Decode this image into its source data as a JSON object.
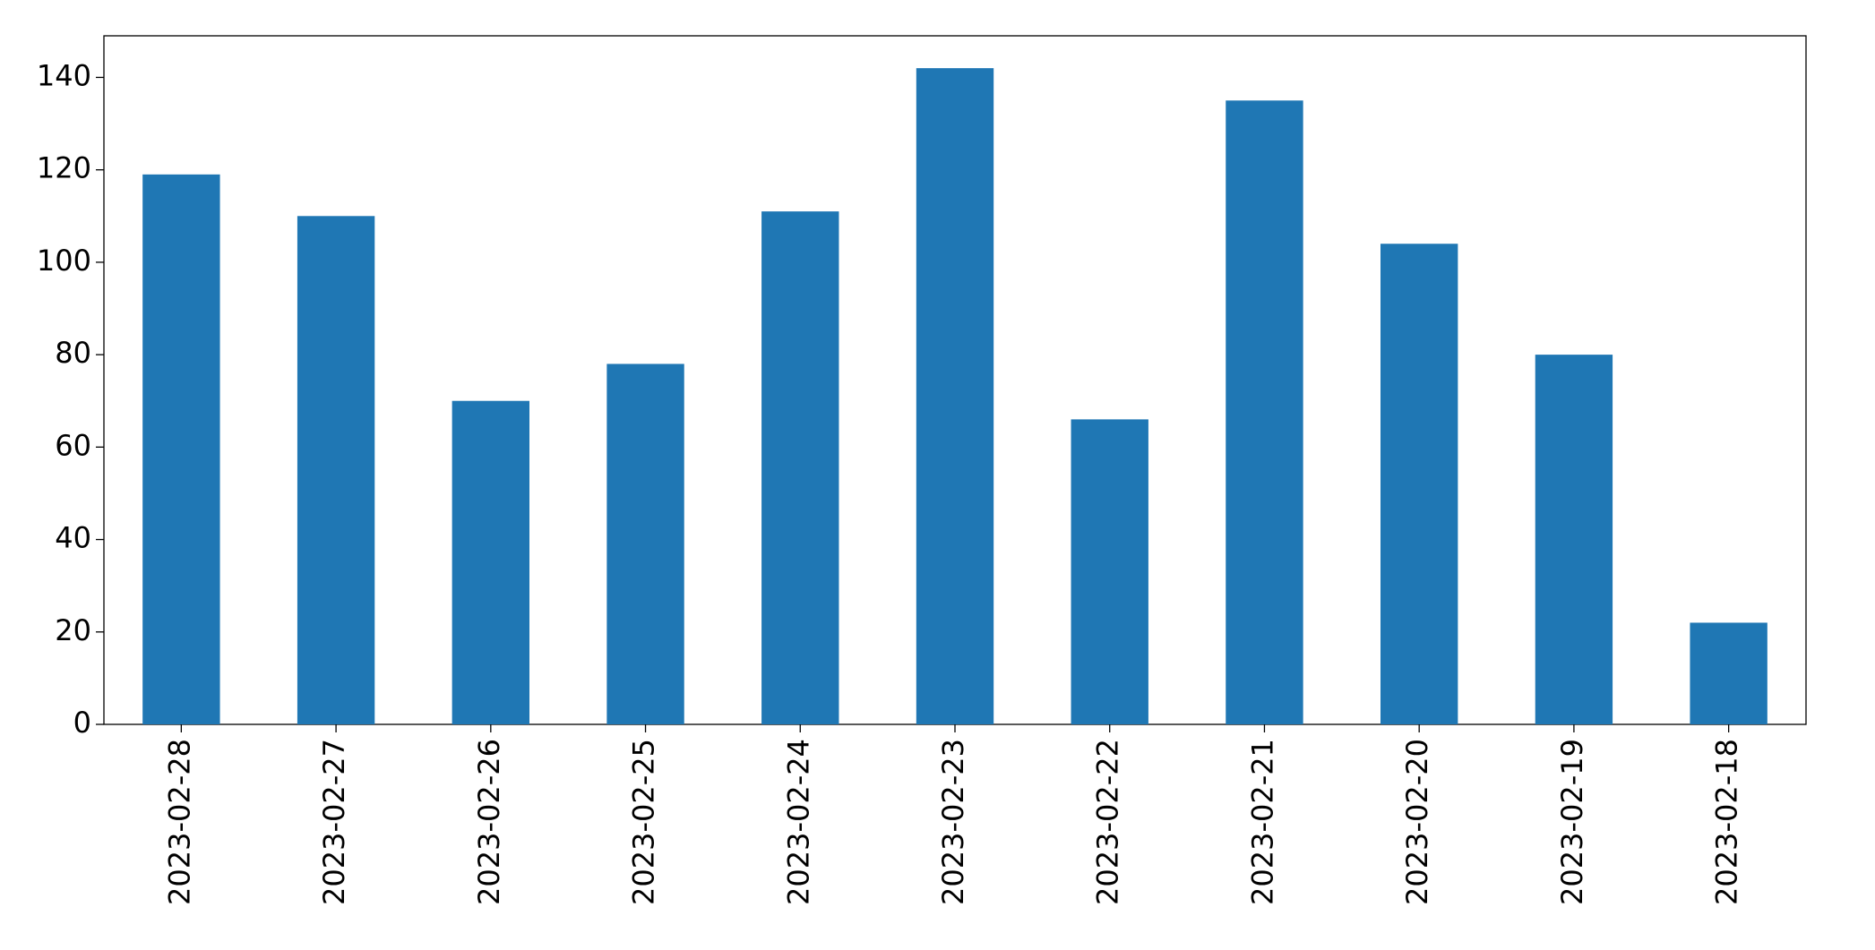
{
  "chart_data": {
    "type": "bar",
    "categories": [
      "2023-02-28",
      "2023-02-27",
      "2023-02-26",
      "2023-02-25",
      "2023-02-24",
      "2023-02-23",
      "2023-02-22",
      "2023-02-21",
      "2023-02-20",
      "2023-02-19",
      "2023-02-18"
    ],
    "values": [
      119,
      110,
      70,
      78,
      111,
      142,
      66,
      135,
      104,
      80,
      22
    ],
    "color": "#1f77b4",
    "ylim": [
      0,
      149
    ],
    "yticks": [
      0,
      20,
      40,
      60,
      80,
      100,
      120,
      140
    ],
    "grid": false
  }
}
